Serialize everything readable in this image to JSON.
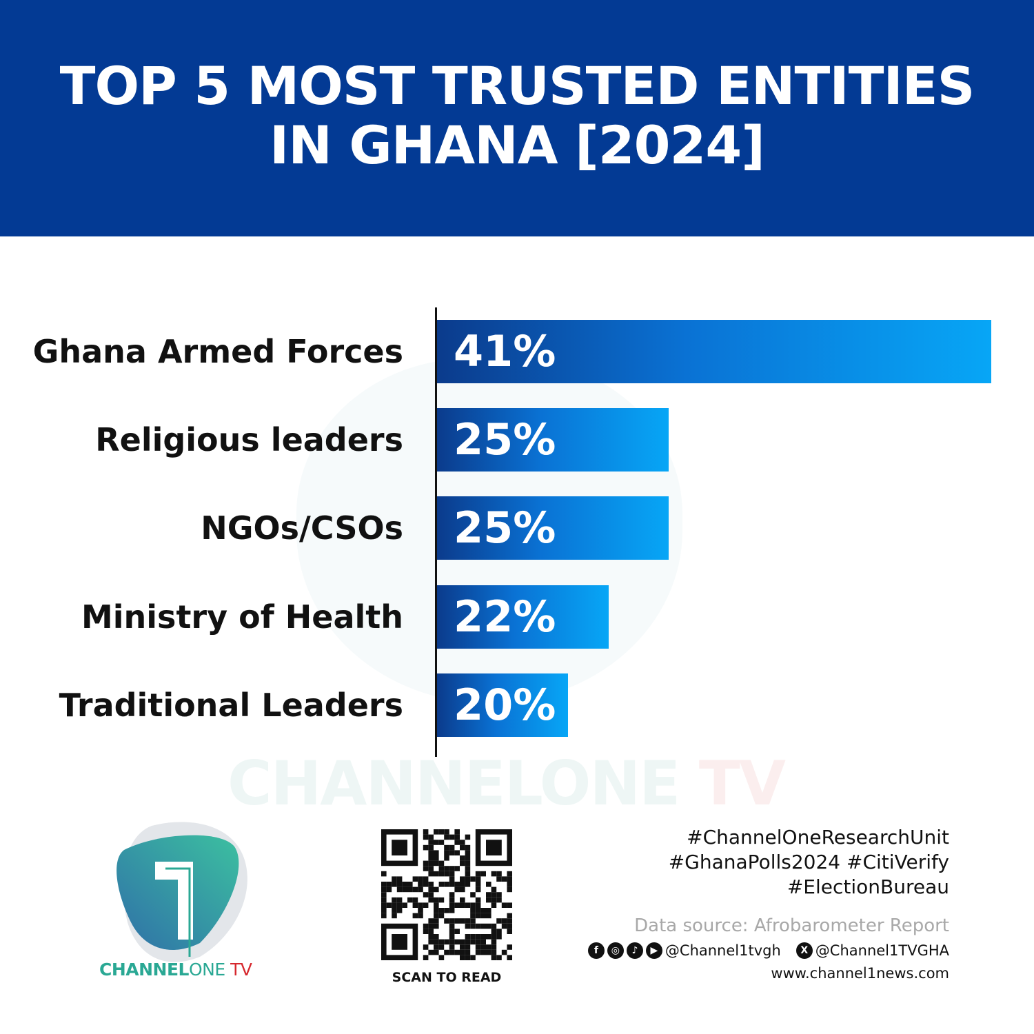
{
  "header": {
    "title_line1": "TOP 5 MOST TRUSTED ENTITIES",
    "title_line2": "IN GHANA [2024]",
    "background": "#033a94"
  },
  "chart_data": {
    "type": "bar",
    "orientation": "horizontal",
    "title": "TOP 5 MOST TRUSTED ENTITIES IN GHANA [2024]",
    "categories": [
      "Ghana Armed Forces",
      "Religious leaders",
      "NGOs/CSOs",
      "Ministry of Health",
      "Traditional Leaders"
    ],
    "values": [
      41,
      25,
      25,
      22,
      20
    ],
    "value_labels": [
      "41%",
      "25%",
      "25%",
      "22%",
      "20%"
    ],
    "unit": "%",
    "grid": false,
    "bar_color_start": "#0b3b8c",
    "bar_color_end": "#07a6f6"
  },
  "watermark": {
    "part1": "CHANNELONE",
    "part2": " TV"
  },
  "footer": {
    "tags": [
      "#ChannelOneResearchUnit",
      "#GhanaPolls2024 #CitiVerify",
      "#ElectionBureau"
    ],
    "source": "Data source: Afrobarometer Report",
    "social_handle": "@Channel1tvgh",
    "x_handle": "@Channel1TVGHA",
    "website": "www.channel1news.com",
    "scan_label": "SCAN TO READ",
    "logo": {
      "part1": "CHANNEL",
      "part2": "ONE",
      "part3": " TV"
    }
  }
}
